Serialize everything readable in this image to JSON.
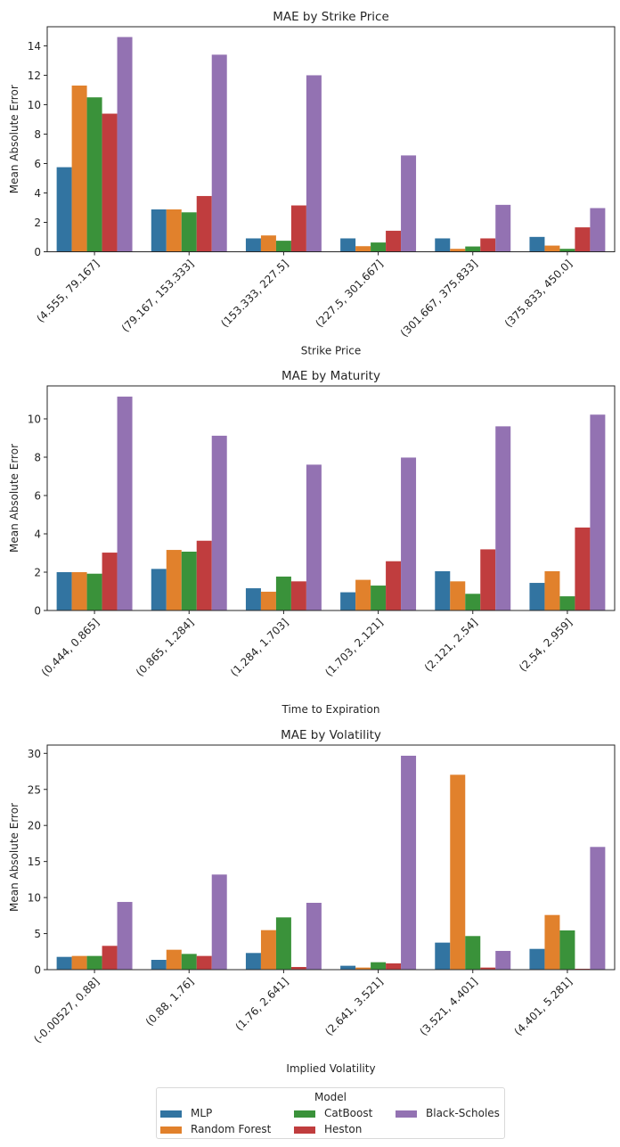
{
  "chart_data": [
    {
      "type": "bar",
      "title": "MAE by Strike Price",
      "xlabel": "Strike Price",
      "ylabel": "Mean Absolute Error",
      "ylim": [
        0,
        15.3
      ],
      "yticks": [
        0,
        2,
        4,
        6,
        8,
        10,
        12,
        14
      ],
      "grid": false,
      "categories": [
        "(4.555, 79.167]",
        "(79.167, 153.333]",
        "(153.333, 227.5]",
        "(227.5, 301.667]",
        "(301.667, 375.833]",
        "(375.833, 450.0]"
      ],
      "series": [
        {
          "name": "MLP",
          "values": [
            5.75,
            2.88,
            0.91,
            0.91,
            0.91,
            1.01
          ]
        },
        {
          "name": "Random Forest",
          "values": [
            11.3,
            2.88,
            1.11,
            0.38,
            0.2,
            0.42
          ]
        },
        {
          "name": "CatBoost",
          "values": [
            10.5,
            2.68,
            0.75,
            0.63,
            0.36,
            0.2
          ]
        },
        {
          "name": "Heston",
          "values": [
            9.39,
            3.79,
            3.15,
            1.43,
            0.91,
            1.66
          ]
        },
        {
          "name": "Black-Scholes",
          "values": [
            14.6,
            13.4,
            12.0,
            6.55,
            3.19,
            2.97
          ]
        }
      ]
    },
    {
      "type": "bar",
      "title": "MAE by Maturity",
      "xlabel": "Time to Expiration",
      "ylabel": "Mean Absolute Error",
      "ylim": [
        0,
        11.72
      ],
      "yticks": [
        0,
        2,
        4,
        6,
        8,
        10
      ],
      "grid": false,
      "categories": [
        "(0.444, 0.865]",
        "(0.865, 1.284]",
        "(1.284, 1.703]",
        "(1.703, 2.121]",
        "(2.121, 2.54]",
        "(2.54, 2.959]"
      ],
      "series": [
        {
          "name": "MLP",
          "values": [
            2.0,
            2.17,
            1.16,
            0.95,
            2.05,
            1.44
          ]
        },
        {
          "name": "Random Forest",
          "values": [
            2.0,
            3.16,
            0.98,
            1.6,
            1.52,
            2.05
          ]
        },
        {
          "name": "CatBoost",
          "values": [
            1.92,
            3.07,
            1.77,
            1.3,
            0.87,
            0.74
          ]
        },
        {
          "name": "Heston",
          "values": [
            3.02,
            3.64,
            1.52,
            2.57,
            3.19,
            4.33
          ]
        },
        {
          "name": "Black-Scholes",
          "values": [
            11.16,
            9.12,
            7.61,
            7.98,
            9.61,
            10.22
          ]
        }
      ]
    },
    {
      "type": "bar",
      "title": "MAE by Volatility",
      "xlabel": "Implied Volatility",
      "ylabel": "Mean Absolute Error",
      "ylim": [
        0,
        31.15
      ],
      "yticks": [
        0,
        5,
        10,
        15,
        20,
        25,
        30
      ],
      "grid": false,
      "categories": [
        "(-0.00527, 0.88]",
        "(0.88, 1.76]",
        "(1.76, 2.641]",
        "(2.641, 3.521]",
        "(3.521, 4.401]",
        "(4.401, 5.281]"
      ],
      "series": [
        {
          "name": "MLP",
          "values": [
            1.77,
            1.36,
            2.31,
            0.54,
            3.75,
            2.88
          ]
        },
        {
          "name": "Random Forest",
          "values": [
            1.9,
            2.76,
            5.48,
            0.29,
            27.03,
            7.58
          ]
        },
        {
          "name": "CatBoost",
          "values": [
            1.9,
            2.18,
            7.25,
            1.03,
            4.66,
            5.44
          ]
        },
        {
          "name": "Heston",
          "values": [
            3.3,
            1.9,
            0.37,
            0.87,
            0.29,
            0.12
          ]
        },
        {
          "name": "Black-Scholes",
          "values": [
            9.39,
            13.19,
            9.27,
            29.67,
            2.6,
            17.02
          ]
        }
      ]
    }
  ],
  "series_colors": {
    "MLP": "#3274a1",
    "Random Forest": "#e1812c",
    "CatBoost": "#3a923a",
    "Heston": "#c03d3e",
    "Black-Scholes": "#9372b2"
  },
  "legend": {
    "title": "Model",
    "placement": "bottom-center",
    "items": [
      "MLP",
      "Random Forest",
      "CatBoost",
      "Heston",
      "Black-Scholes"
    ]
  }
}
